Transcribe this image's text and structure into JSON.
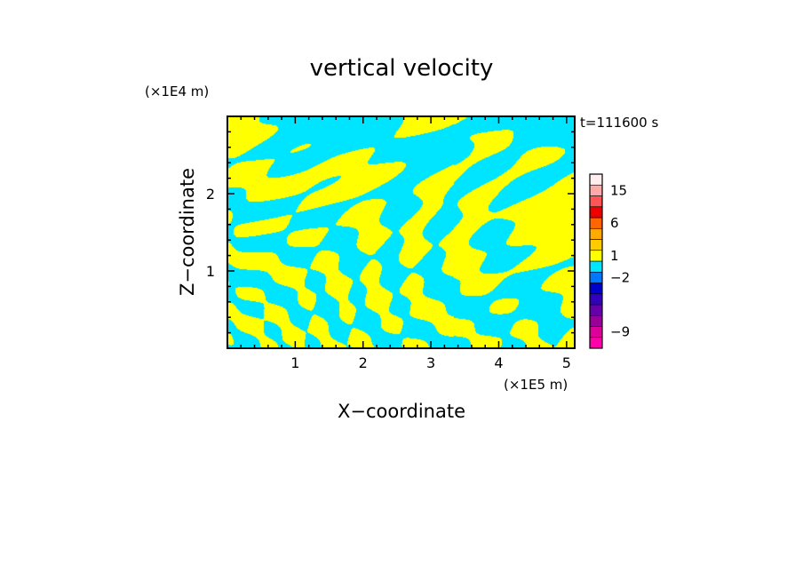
{
  "chart_data": {
    "type": "heatmap",
    "title": "vertical velocity",
    "xlabel": "X−coordinate",
    "ylabel": "Z−coordinate",
    "x_unit": "(×1E5 m)",
    "y_unit": "(×1E4 m)",
    "time_label": "t=111600 s",
    "xlim": [
      0,
      5.12
    ],
    "ylim": [
      0,
      3.0
    ],
    "x_ticks": [
      1,
      2,
      3,
      4,
      5
    ],
    "y_ticks": [
      1,
      2
    ],
    "field_colors": {
      "positive": "#ffff00",
      "negative": "#00e5ff"
    },
    "colorbar": {
      "tick_labels": [
        15,
        6,
        1,
        -2,
        -9
      ],
      "bins": [
        {
          "color": "#ff00aa"
        },
        {
          "color": "#dd0099"
        },
        {
          "color": "#990099"
        },
        {
          "color": "#6600aa"
        },
        {
          "color": "#3300bb"
        },
        {
          "color": "#0000cc"
        },
        {
          "color": "#0077ff"
        },
        {
          "color": "#00e5ff"
        },
        {
          "color": "#ffff00"
        },
        {
          "color": "#ffcc00"
        },
        {
          "color": "#ffaa00"
        },
        {
          "color": "#ff6600"
        },
        {
          "color": "#ee0000"
        },
        {
          "color": "#ff5555"
        },
        {
          "color": "#ffaaaa"
        },
        {
          "color": "#ffeeee"
        }
      ],
      "bin_label_index": {
        "15": 14,
        "6": 11,
        "1": 8,
        "-2": 6,
        "-9": 1
      }
    }
  }
}
